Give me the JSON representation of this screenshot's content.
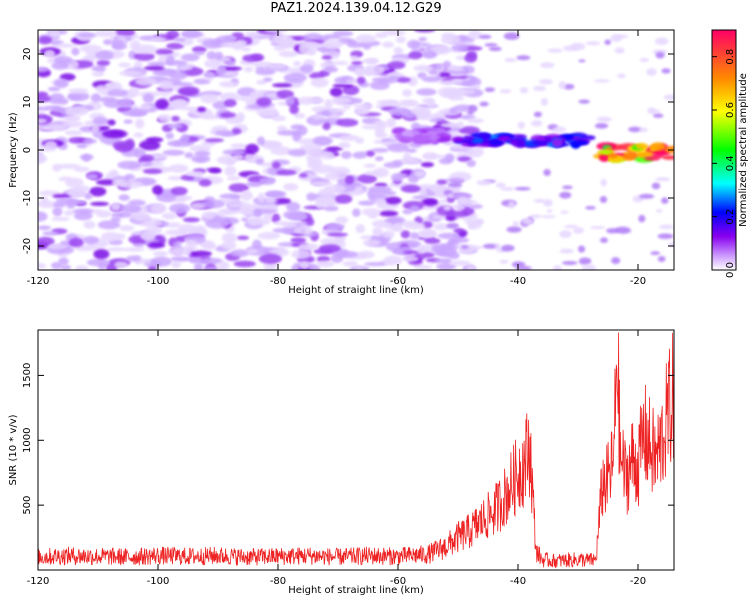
{
  "title": "PAZ1.2024.139.04.12.G29",
  "chart_data": [
    {
      "type": "heatmap",
      "xlabel": "Height of straight line (km)",
      "ylabel": "Frequency (Hz)",
      "xlim": [
        -120,
        -14
      ],
      "ylim": [
        -25,
        25
      ],
      "xticks": [
        -120,
        -100,
        -80,
        -60,
        -40,
        -20
      ],
      "yticks": [
        -20,
        -10,
        0,
        10,
        20
      ],
      "colorbar": {
        "label": "Normalized spectral amplitude",
        "range": [
          0.0,
          0.9
        ],
        "ticks": [
          0.0,
          0.2,
          0.4,
          0.6,
          0.8
        ],
        "colormap": [
          "#ffffff",
          "#cc99ff",
          "#8800ee",
          "#0000ff",
          "#00ffff",
          "#00ff00",
          "#ffff00",
          "#ff8800",
          "#ff0066"
        ]
      },
      "features": [
        {
          "description": "diffuse noise",
          "x": [
            -120,
            -53
          ],
          "y": [
            -25,
            25
          ],
          "amplitude": 0.1
        },
        {
          "description": "signal band",
          "x": [
            -60,
            -52
          ],
          "y": [
            2,
            4
          ],
          "amplitude": 0.15
        },
        {
          "description": "signal band",
          "x": [
            -50,
            -28
          ],
          "y": [
            1,
            3
          ],
          "amplitude": 0.3
        },
        {
          "description": "signal band",
          "x": [
            -26,
            -14
          ],
          "y": [
            -2,
            1
          ],
          "amplitude": 0.8
        }
      ]
    },
    {
      "type": "line",
      "xlabel": "Height of straight line (km)",
      "ylabel": "SNR (10 * v/v)",
      "xlim": [
        -120,
        -14
      ],
      "ylim": [
        0,
        1850
      ],
      "xticks": [
        -120,
        -100,
        -80,
        -60,
        -40,
        -20
      ],
      "yticks": [
        500,
        1000,
        1500
      ],
      "color": "#ee2222",
      "series": [
        {
          "x": [
            -120,
            -115,
            -110,
            -105,
            -100,
            -95,
            -90,
            -85,
            -80,
            -75,
            -70,
            -65,
            -60,
            -55,
            -52,
            -50,
            -48,
            -46,
            -44,
            -42,
            -40,
            -39,
            -38,
            -37,
            -36,
            -34,
            -32,
            -30,
            -28,
            -27,
            -26,
            -25,
            -24,
            -23.5,
            -23,
            -22,
            -21,
            -20,
            -19,
            -18,
            -17,
            -16,
            -15,
            -14
          ],
          "y": [
            100,
            110,
            105,
            100,
            110,
            105,
            110,
            100,
            105,
            110,
            100,
            110,
            105,
            120,
            180,
            250,
            300,
            380,
            450,
            580,
            750,
            820,
            950,
            150,
            80,
            70,
            75,
            80,
            75,
            80,
            650,
            700,
            850,
            1800,
            900,
            700,
            850,
            800,
            1050,
            950,
            850,
            1000,
            1200,
            1350
          ]
        }
      ]
    }
  ]
}
